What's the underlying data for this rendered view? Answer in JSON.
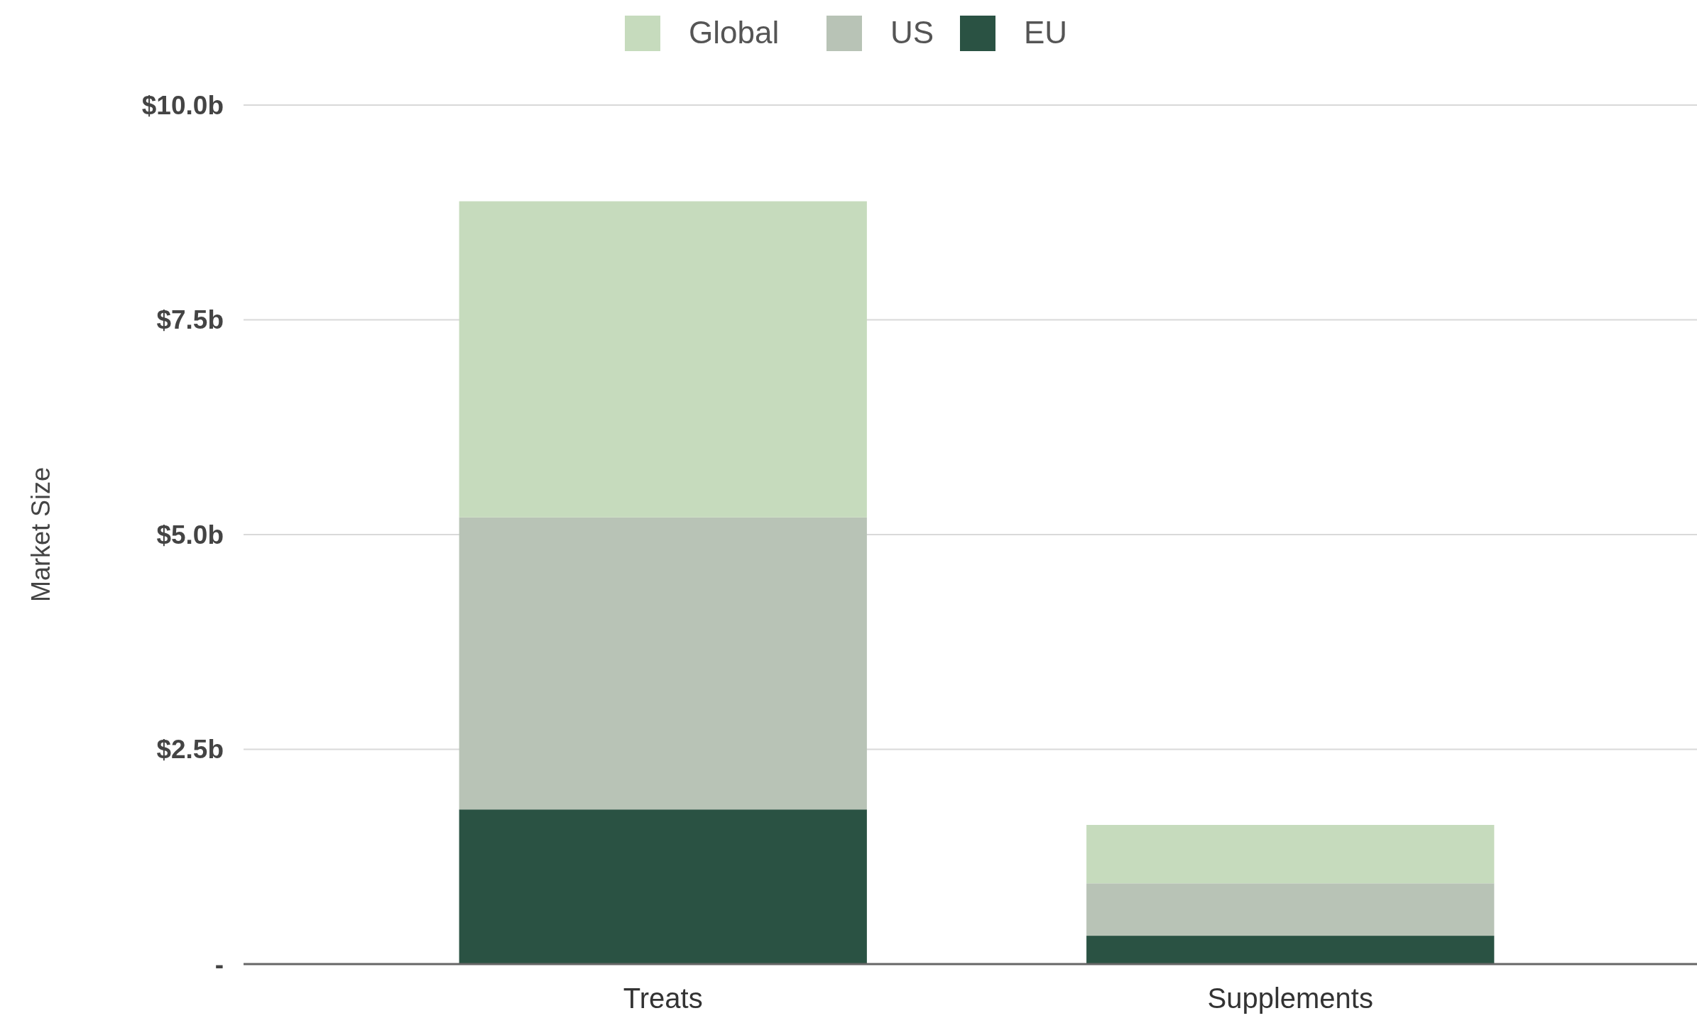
{
  "chart_data": {
    "type": "bar",
    "stacked": true,
    "ylabel": "Market Size",
    "categories": [
      "Treats",
      "Supplements"
    ],
    "series": [
      {
        "name": "EU",
        "color": "#2a5243",
        "values": [
          1.8,
          0.33
        ]
      },
      {
        "name": "US",
        "color": "#b8c3b6",
        "values": [
          3.4,
          0.61
        ]
      },
      {
        "name": "Global",
        "color": "#c6dbbd",
        "values": [
          3.68,
          0.68
        ]
      }
    ],
    "ylim": [
      0,
      10
    ],
    "yticks": [
      {
        "value": 0,
        "label": "-"
      },
      {
        "value": 2.5,
        "label": "$2.5b"
      },
      {
        "value": 5,
        "label": "$5.0b"
      },
      {
        "value": 7.5,
        "label": "$7.5b"
      },
      {
        "value": 10,
        "label": "$10.0b"
      }
    ],
    "grid": "y",
    "legend": "top"
  }
}
